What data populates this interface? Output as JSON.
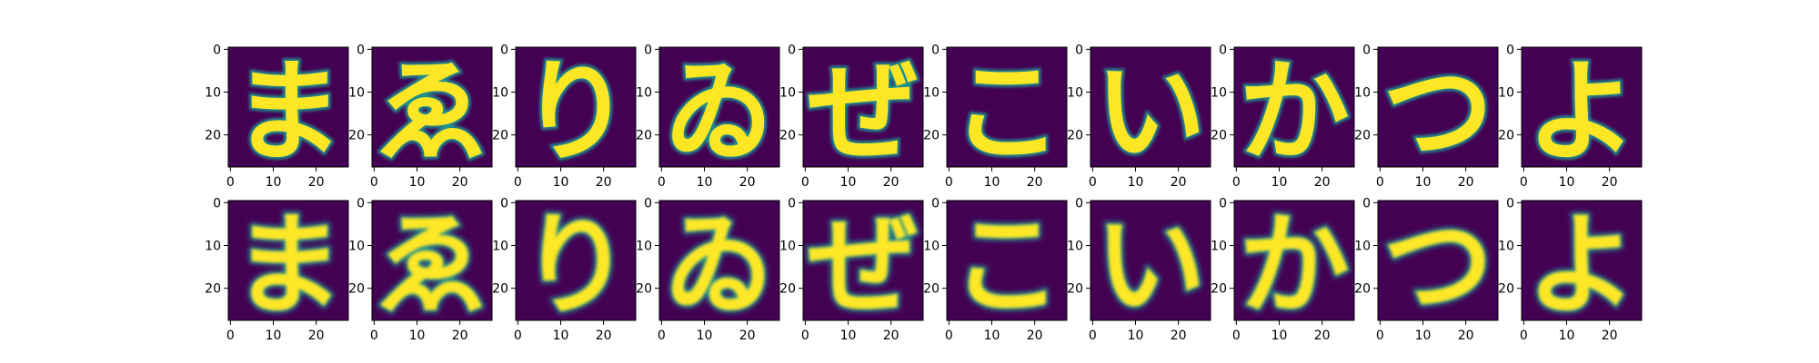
{
  "figure": {
    "background": "#ffffff",
    "rows": 2,
    "cols": 10,
    "row_labels": [],
    "col_labels": []
  },
  "chart_data": {
    "type": "heatmap",
    "title": "",
    "xlabel": "",
    "ylabel": "",
    "colormap": "viridis",
    "colors": {
      "low": "#440154",
      "high": "#fde725",
      "mid": "#21918c"
    },
    "image_size": [
      28,
      28
    ],
    "xlim": [
      0,
      27
    ],
    "ylim": [
      27,
      0
    ],
    "xticks": [
      0,
      10,
      20
    ],
    "yticks": [
      0,
      10,
      20
    ],
    "xtick_labels": [
      "0",
      "10",
      "20"
    ],
    "ytick_labels": [
      "0",
      "10",
      "20"
    ],
    "grid": false,
    "panels_per_row": 10,
    "panel_rows": 2,
    "glyphs": [
      "ま",
      "ゑ",
      "り",
      "ゐ",
      "ぜ",
      "こ",
      "い",
      "か",
      "つ",
      "よ"
    ]
  }
}
